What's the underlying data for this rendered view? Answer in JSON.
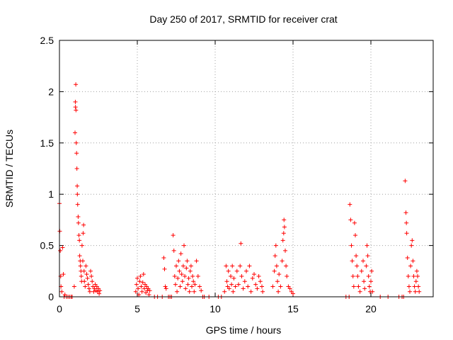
{
  "chart_data": {
    "type": "scatter",
    "title": "Day 250 of 2017, SRMTID for receiver crat",
    "xlabel": "GPS time / hours",
    "ylabel": "SRMTID / TECUs",
    "xlim": [
      0,
      24
    ],
    "ylim": [
      0,
      2.5
    ],
    "xticks": [
      0,
      5,
      10,
      15,
      20
    ],
    "xtick_labels": [
      "0",
      "5",
      "10",
      "15",
      "20"
    ],
    "yticks": [
      0,
      0.5,
      1,
      1.5,
      2,
      2.5
    ],
    "ytick_labels": [
      "0",
      "0.5",
      "1",
      "1.5",
      "2",
      "2.5"
    ],
    "grid": true,
    "marker": "+",
    "series": [
      {
        "name": "SRMTID",
        "color": "#ff0000",
        "points": [
          [
            0.0,
            0.91
          ],
          [
            0.02,
            0.64
          ],
          [
            0.05,
            0.45
          ],
          [
            0.08,
            0.2
          ],
          [
            0.1,
            0.1
          ],
          [
            0.15,
            0.05
          ],
          [
            0.2,
            0.48
          ],
          [
            0.25,
            0.22
          ],
          [
            0.3,
            0.0
          ],
          [
            0.35,
            0.02
          ],
          [
            0.45,
            0.0
          ],
          [
            0.55,
            0.0
          ],
          [
            0.65,
            0.0
          ],
          [
            0.75,
            0.0
          ],
          [
            0.82,
            0.0
          ],
          [
            0.95,
            0.1
          ],
          [
            1.0,
            1.6
          ],
          [
            1.02,
            1.9
          ],
          [
            1.03,
            1.85
          ],
          [
            1.05,
            2.07
          ],
          [
            1.06,
            1.82
          ],
          [
            1.08,
            1.5
          ],
          [
            1.1,
            1.4
          ],
          [
            1.12,
            1.25
          ],
          [
            1.14,
            1.08
          ],
          [
            1.15,
            1.0
          ],
          [
            1.17,
            0.9
          ],
          [
            1.2,
            0.78
          ],
          [
            1.22,
            0.72
          ],
          [
            1.25,
            0.6
          ],
          [
            1.28,
            0.55
          ],
          [
            1.3,
            0.4
          ],
          [
            1.33,
            0.35
          ],
          [
            1.35,
            0.3
          ],
          [
            1.38,
            0.25
          ],
          [
            1.4,
            0.2
          ],
          [
            1.42,
            0.15
          ],
          [
            1.45,
            0.5
          ],
          [
            1.5,
            0.35
          ],
          [
            1.52,
            0.62
          ],
          [
            1.55,
            0.7
          ],
          [
            1.58,
            0.25
          ],
          [
            1.6,
            0.15
          ],
          [
            1.65,
            0.1
          ],
          [
            1.7,
            0.3
          ],
          [
            1.75,
            0.22
          ],
          [
            1.8,
            0.18
          ],
          [
            1.85,
            0.12
          ],
          [
            1.9,
            0.08
          ],
          [
            1.95,
            0.05
          ],
          [
            2.0,
            0.25
          ],
          [
            2.05,
            0.2
          ],
          [
            2.1,
            0.15
          ],
          [
            2.15,
            0.1
          ],
          [
            2.2,
            0.05
          ],
          [
            2.25,
            0.08
          ],
          [
            2.3,
            0.12
          ],
          [
            2.35,
            0.06
          ],
          [
            2.4,
            0.1
          ],
          [
            2.45,
            0.05
          ],
          [
            2.5,
            0.08
          ],
          [
            2.55,
            0.03
          ],
          [
            2.6,
            0.06
          ],
          [
            4.9,
            0.05
          ],
          [
            4.95,
            0.12
          ],
          [
            5.0,
            0.18
          ],
          [
            5.05,
            0.08
          ],
          [
            5.1,
            0.02
          ],
          [
            5.15,
            0.15
          ],
          [
            5.2,
            0.2
          ],
          [
            5.25,
            0.1
          ],
          [
            5.3,
            0.05
          ],
          [
            5.35,
            0.14
          ],
          [
            5.4,
            0.22
          ],
          [
            5.45,
            0.08
          ],
          [
            5.5,
            0.12
          ],
          [
            5.55,
            0.04
          ],
          [
            5.6,
            0.1
          ],
          [
            5.65,
            0.06
          ],
          [
            5.7,
            0.08
          ],
          [
            5.75,
            0.02
          ],
          [
            5.8,
            0.06
          ],
          [
            6.1,
            0.0
          ],
          [
            6.3,
            0.0
          ],
          [
            6.6,
            0.0
          ],
          [
            6.7,
            0.38
          ],
          [
            6.75,
            0.27
          ],
          [
            6.8,
            0.1
          ],
          [
            6.85,
            0.08
          ],
          [
            7.0,
            0.0
          ],
          [
            7.1,
            0.0
          ],
          [
            7.2,
            0.0
          ],
          [
            7.3,
            0.6
          ],
          [
            7.35,
            0.45
          ],
          [
            7.4,
            0.2
          ],
          [
            7.45,
            0.12
          ],
          [
            7.5,
            0.3
          ],
          [
            7.55,
            0.05
          ],
          [
            7.6,
            0.18
          ],
          [
            7.65,
            0.35
          ],
          [
            7.7,
            0.25
          ],
          [
            7.75,
            0.1
          ],
          [
            7.8,
            0.42
          ],
          [
            7.85,
            0.22
          ],
          [
            7.9,
            0.15
          ],
          [
            7.95,
            0.3
          ],
          [
            8.0,
            0.5
          ],
          [
            8.05,
            0.2
          ],
          [
            8.1,
            0.08
          ],
          [
            8.15,
            0.28
          ],
          [
            8.2,
            0.35
          ],
          [
            8.25,
            0.12
          ],
          [
            8.3,
            0.18
          ],
          [
            8.35,
            0.05
          ],
          [
            8.4,
            0.25
          ],
          [
            8.45,
            0.3
          ],
          [
            8.5,
            0.1
          ],
          [
            8.55,
            0.2
          ],
          [
            8.6,
            0.15
          ],
          [
            8.65,
            0.05
          ],
          [
            8.7,
            0.12
          ],
          [
            8.8,
            0.35
          ],
          [
            8.9,
            0.2
          ],
          [
            9.0,
            0.1
          ],
          [
            9.1,
            0.06
          ],
          [
            9.2,
            0.0
          ],
          [
            9.3,
            0.0
          ],
          [
            9.6,
            0.0
          ],
          [
            10.2,
            0.0
          ],
          [
            10.4,
            0.0
          ],
          [
            10.6,
            0.05
          ],
          [
            10.7,
            0.3
          ],
          [
            10.75,
            0.15
          ],
          [
            10.8,
            0.1
          ],
          [
            10.85,
            0.25
          ],
          [
            10.9,
            0.08
          ],
          [
            11.0,
            0.2
          ],
          [
            11.05,
            0.12
          ],
          [
            11.1,
            0.3
          ],
          [
            11.15,
            0.05
          ],
          [
            11.2,
            0.18
          ],
          [
            11.3,
            0.1
          ],
          [
            11.4,
            0.25
          ],
          [
            11.5,
            0.12
          ],
          [
            11.6,
            0.3
          ],
          [
            11.65,
            0.52
          ],
          [
            11.7,
            0.2
          ],
          [
            11.8,
            0.08
          ],
          [
            11.9,
            0.15
          ],
          [
            12.0,
            0.25
          ],
          [
            12.1,
            0.1
          ],
          [
            12.2,
            0.3
          ],
          [
            12.3,
            0.05
          ],
          [
            12.4,
            0.18
          ],
          [
            12.5,
            0.22
          ],
          [
            12.6,
            0.12
          ],
          [
            12.7,
            0.08
          ],
          [
            12.8,
            0.2
          ],
          [
            12.9,
            0.15
          ],
          [
            13.0,
            0.1
          ],
          [
            13.05,
            0.05
          ],
          [
            13.7,
            0.1
          ],
          [
            13.8,
            0.25
          ],
          [
            13.85,
            0.4
          ],
          [
            13.9,
            0.5
          ],
          [
            13.95,
            0.3
          ],
          [
            14.0,
            0.15
          ],
          [
            14.05,
            0.05
          ],
          [
            14.1,
            0.22
          ],
          [
            14.2,
            0.1
          ],
          [
            14.3,
            0.35
          ],
          [
            14.35,
            0.55
          ],
          [
            14.4,
            0.62
          ],
          [
            14.42,
            0.75
          ],
          [
            14.45,
            0.68
          ],
          [
            14.5,
            0.45
          ],
          [
            14.55,
            0.3
          ],
          [
            14.6,
            0.2
          ],
          [
            14.7,
            0.1
          ],
          [
            14.8,
            0.08
          ],
          [
            14.9,
            0.05
          ],
          [
            15.0,
            0.03
          ],
          [
            18.4,
            0.0
          ],
          [
            18.6,
            0.0
          ],
          [
            18.65,
            0.9
          ],
          [
            18.7,
            0.75
          ],
          [
            18.75,
            0.5
          ],
          [
            18.8,
            0.35
          ],
          [
            18.85,
            0.2
          ],
          [
            18.9,
            0.1
          ],
          [
            18.95,
            0.72
          ],
          [
            19.0,
            0.6
          ],
          [
            19.05,
            0.4
          ],
          [
            19.1,
            0.3
          ],
          [
            19.15,
            0.2
          ],
          [
            19.2,
            0.1
          ],
          [
            19.3,
            0.05
          ],
          [
            19.4,
            0.25
          ],
          [
            19.5,
            0.35
          ],
          [
            19.55,
            0.15
          ],
          [
            19.6,
            0.08
          ],
          [
            19.7,
            0.3
          ],
          [
            19.75,
            0.5
          ],
          [
            19.8,
            0.4
          ],
          [
            19.85,
            0.2
          ],
          [
            19.9,
            0.1
          ],
          [
            19.95,
            0.05
          ],
          [
            20.0,
            0.15
          ],
          [
            20.05,
            0.25
          ],
          [
            20.1,
            0.05
          ],
          [
            20.6,
            0.0
          ],
          [
            21.1,
            0.0
          ],
          [
            21.8,
            0.0
          ],
          [
            22.0,
            0.0
          ],
          [
            22.1,
            0.0
          ],
          [
            22.2,
            1.13
          ],
          [
            22.25,
            0.82
          ],
          [
            22.28,
            0.72
          ],
          [
            22.3,
            0.62
          ],
          [
            22.35,
            0.38
          ],
          [
            22.4,
            0.2
          ],
          [
            22.45,
            0.1
          ],
          [
            22.5,
            0.05
          ],
          [
            22.55,
            0.3
          ],
          [
            22.6,
            0.5
          ],
          [
            22.65,
            0.55
          ],
          [
            22.7,
            0.35
          ],
          [
            22.75,
            0.2
          ],
          [
            22.8,
            0.1
          ],
          [
            22.85,
            0.05
          ],
          [
            22.9,
            0.15
          ],
          [
            22.95,
            0.25
          ],
          [
            23.0,
            0.2
          ],
          [
            23.05,
            0.1
          ],
          [
            23.1,
            0.05
          ]
        ]
      }
    ]
  }
}
